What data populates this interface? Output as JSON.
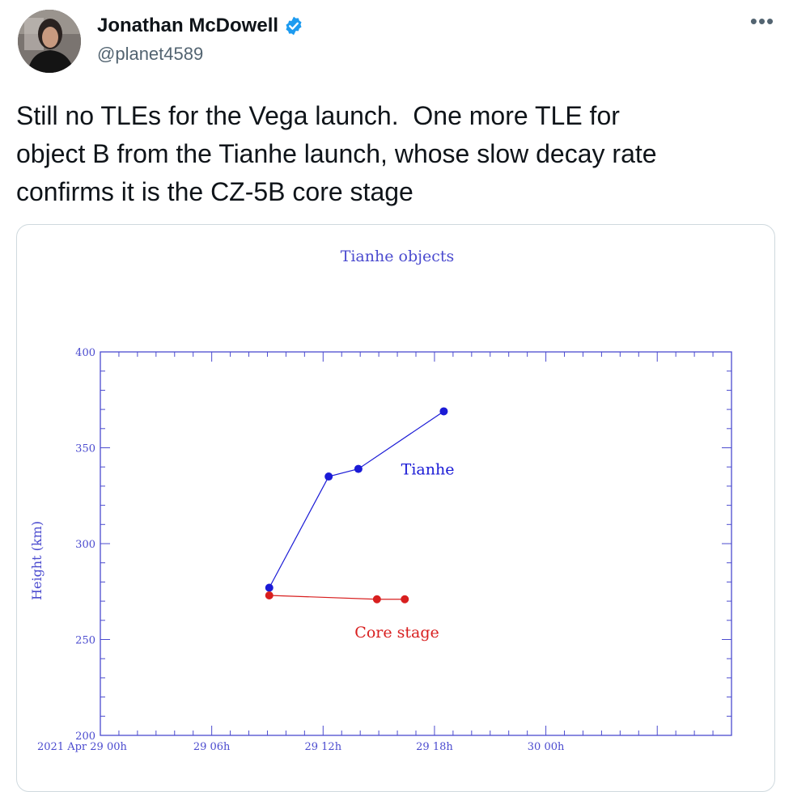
{
  "author": {
    "name": "Jonathan McDowell",
    "handle": "@planet4589",
    "verified": true
  },
  "more_icon": "more-horizontal-icon",
  "tweet": {
    "text": "Still no TLEs for the Vega launch.  One more TLE for\nobject B from the Tianhe launch, whose slow decay rate\nconfirms it is the CZ-5B core stage"
  },
  "colors": {
    "accent": "#1d9bf0",
    "axis": "#4b4bcf",
    "tianhe": "#1b1bd6",
    "core": "#d81f1f"
  },
  "chart_data": {
    "type": "line",
    "title": "Tianhe objects",
    "ylabel": "Height (km)",
    "xlabel": "",
    "ylim": [
      200,
      400
    ],
    "yticks": [
      200,
      250,
      300,
      350,
      400
    ],
    "xlim": [
      0,
      34
    ],
    "xticks": [
      {
        "value": 0,
        "label": "2021 Apr 29  00h"
      },
      {
        "value": 6,
        "label": "29  06h"
      },
      {
        "value": 12,
        "label": "29  12h"
      },
      {
        "value": 18,
        "label": "29  18h"
      },
      {
        "value": 24,
        "label": "30  00h"
      }
    ],
    "xunit": "hours after 2021 Apr 29 00h",
    "series": [
      {
        "name": "Tianhe",
        "color": "#1b1bd6",
        "points": [
          [
            9.1,
            277
          ],
          [
            12.3,
            335
          ],
          [
            13.9,
            339
          ],
          [
            18.5,
            369
          ]
        ],
        "label_at": [
          16.2,
          336
        ]
      },
      {
        "name": "Core stage",
        "color": "#d81f1f",
        "points": [
          [
            9.1,
            273
          ],
          [
            14.9,
            271
          ],
          [
            16.4,
            271
          ]
        ],
        "label_at": [
          13.7,
          251
        ]
      }
    ]
  }
}
